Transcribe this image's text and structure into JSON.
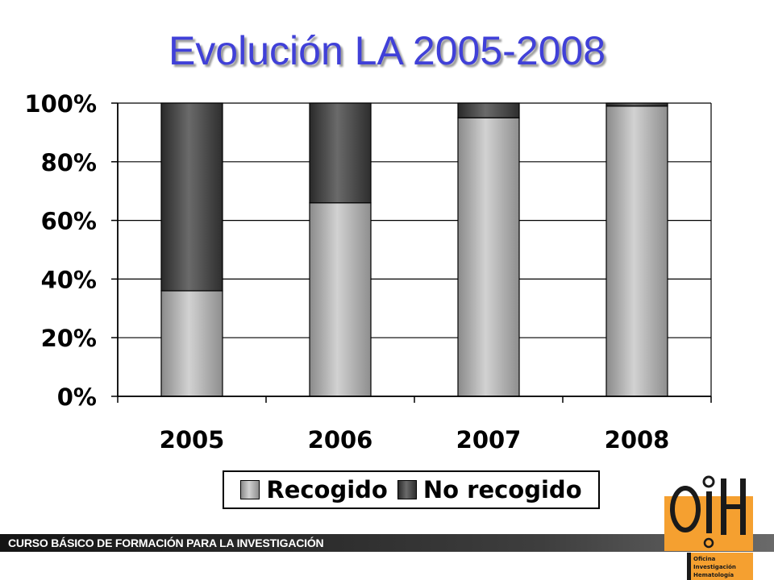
{
  "slide": {
    "footer_text": "CURSO BÁSICO DE FORMACIÓN PARA LA INVESTIGACIÓN"
  },
  "logo": {
    "mark": "OIH",
    "lines": [
      "Oficina",
      "Investigación",
      "Hematología"
    ],
    "colors": {
      "orange": "#f5a030",
      "ink": "#1a1a1a"
    }
  },
  "chart_data": {
    "type": "bar",
    "stacked": true,
    "title": "Evolución LA 2005-2008",
    "categories": [
      "2005",
      "2006",
      "2007",
      "2008"
    ],
    "series": [
      {
        "name": "Recogido",
        "values": [
          36,
          66,
          95,
          99
        ],
        "color": "#a8a8a8"
      },
      {
        "name": "No recogido",
        "values": [
          64,
          34,
          5,
          1
        ],
        "color": "#4a4a4a"
      }
    ],
    "y_ticks": [
      "0%",
      "20%",
      "40%",
      "60%",
      "80%",
      "100%"
    ],
    "ylim": [
      0,
      100
    ],
    "grid": true,
    "legend_position": "bottom"
  }
}
